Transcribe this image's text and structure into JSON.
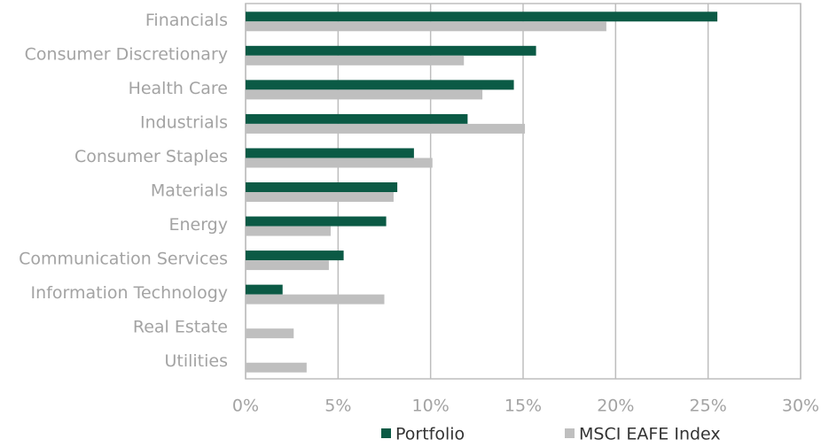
{
  "chart_data": {
    "type": "hbar",
    "categories": [
      "Financials",
      "Consumer Discretionary",
      "Health Care",
      "Industrials",
      "Consumer Staples",
      "Materials",
      "Energy",
      "Communication Services",
      "Information Technology",
      "Real Estate",
      "Utilities"
    ],
    "series": [
      {
        "name": "Portfolio",
        "color": "#0b5a45",
        "values": [
          25.5,
          15.7,
          14.5,
          12.0,
          9.1,
          8.2,
          7.6,
          5.3,
          2.0,
          0,
          0
        ]
      },
      {
        "name": "MSCI EAFE Index",
        "color": "#bfbfbf",
        "values": [
          19.5,
          11.8,
          12.8,
          15.1,
          10.1,
          8.0,
          4.6,
          4.5,
          7.5,
          2.6,
          3.3
        ]
      }
    ],
    "xlim": [
      0,
      30
    ],
    "xticks": [
      {
        "value": 0,
        "label": "0%"
      },
      {
        "value": 5,
        "label": "5%"
      },
      {
        "value": 10,
        "label": "10%"
      },
      {
        "value": 15,
        "label": "15%"
      },
      {
        "value": 20,
        "label": "20%"
      },
      {
        "value": 25,
        "label": "25%"
      },
      {
        "value": 30,
        "label": "30%"
      }
    ],
    "grid": true,
    "legend": "bottom"
  }
}
